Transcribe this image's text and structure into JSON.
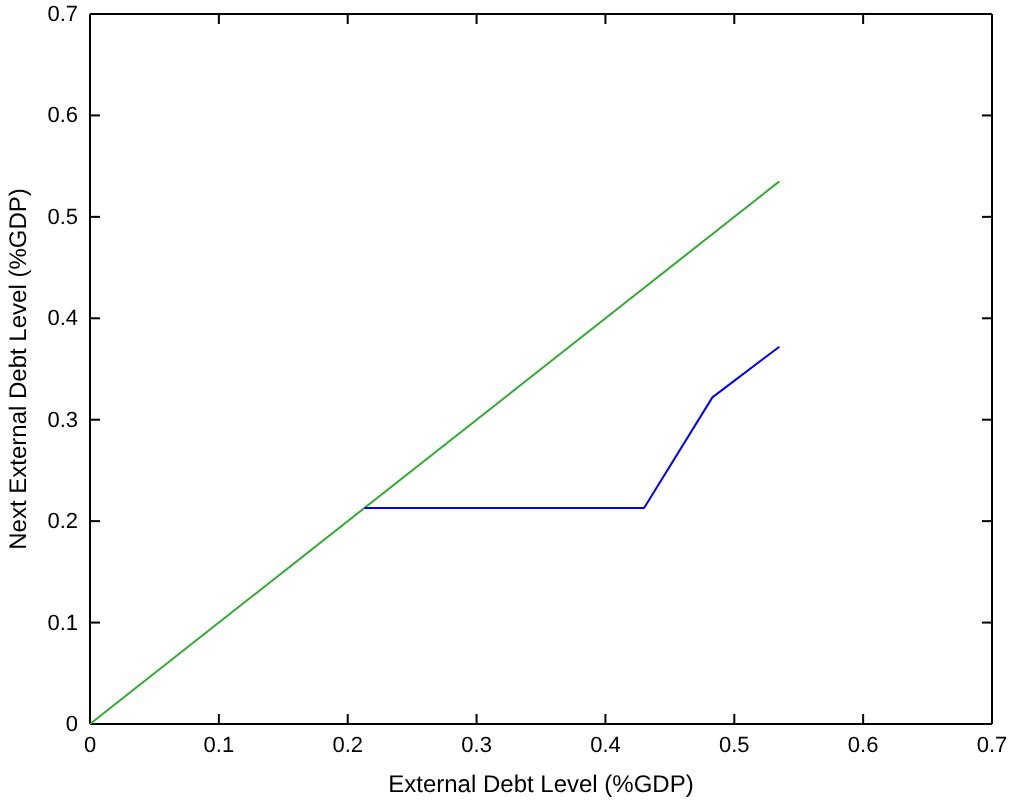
{
  "chart_data": {
    "type": "line",
    "xlabel": "External Debt Level (%GDP)",
    "ylabel": "Next External Debt Level (%GDP)",
    "xlim": [
      0,
      0.7
    ],
    "ylim": [
      0,
      0.7
    ],
    "xticks": [
      0,
      0.1,
      0.2,
      0.3,
      0.4,
      0.5,
      0.6,
      0.7
    ],
    "yticks": [
      0,
      0.1,
      0.2,
      0.3,
      0.4,
      0.5,
      0.6,
      0.7
    ],
    "grid": false,
    "series": [
      {
        "color": "#33aa33",
        "x": [
          0,
          0.535
        ],
        "values": [
          0,
          0.535
        ]
      },
      {
        "color": "#0000ff",
        "x": [
          0.213,
          0.43,
          0.483,
          0.535
        ],
        "values": [
          0.213,
          0.213,
          0.322,
          0.372
        ]
      }
    ]
  }
}
